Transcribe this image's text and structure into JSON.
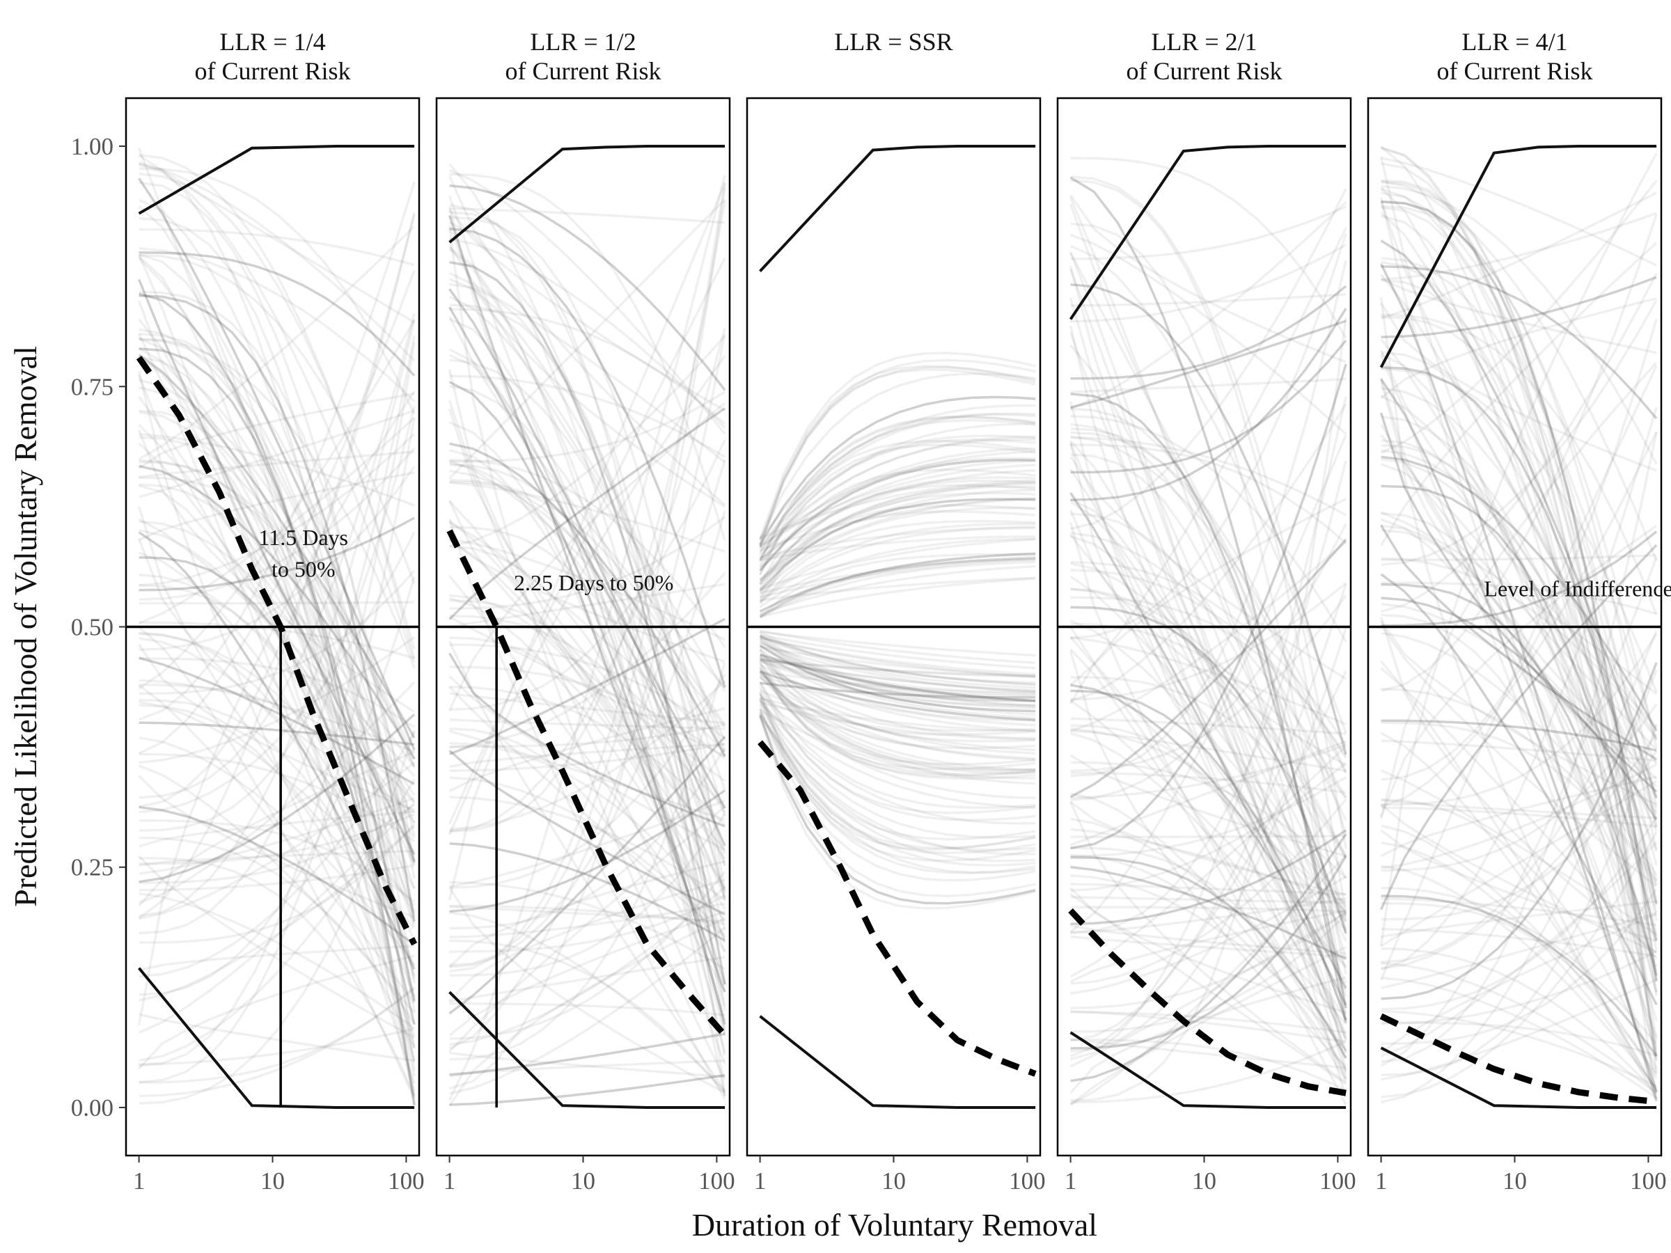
{
  "chart_data": {
    "type": "line",
    "xlabel": "Duration of Voluntary Removal",
    "ylabel": "Predicted Likelihood of Voluntary Removal",
    "xscale": "log",
    "x_ticks": [
      "1",
      "10",
      "100"
    ],
    "x_tick_values": [
      1,
      10,
      100
    ],
    "y_ticks": [
      "0.00",
      "0.25",
      "0.50",
      "0.75",
      "1.00"
    ],
    "y_tick_values": [
      0,
      0.25,
      0.5,
      0.75,
      1.0
    ],
    "xlim": [
      0.8,
      125
    ],
    "ylim": [
      -0.05,
      1.05
    ],
    "indifference_level": 0.5,
    "panels": [
      {
        "title_line1": "LLR = 1/4",
        "title_line2": "of Current Risk",
        "annotation_line1": "11.5 Days",
        "annotation_line2": "to 50%",
        "annotation_x": 17,
        "annotation_y1": 0.585,
        "annotation_y2": 0.552,
        "crossing_x": 11.5,
        "series": [
          {
            "role": "mean",
            "x": [
              1,
              2,
              4,
              7,
              11.5,
              20,
              40,
              70,
              115
            ],
            "y": [
              0.78,
              0.72,
              0.64,
              0.56,
              0.5,
              0.41,
              0.31,
              0.23,
              0.17
            ]
          },
          {
            "role": "upper",
            "x": [
              1,
              7,
              15,
              30,
              60,
              115
            ],
            "y": [
              0.93,
              0.998,
              0.999,
              1.0,
              1.0,
              1.0
            ]
          },
          {
            "role": "lower",
            "x": [
              1,
              7,
              15,
              30,
              60,
              115
            ],
            "y": [
              0.145,
              0.002,
              0.001,
              0.0,
              0.0,
              0.0
            ]
          }
        ]
      },
      {
        "title_line1": "LLR = 1/2",
        "title_line2": "of Current Risk",
        "annotation_line1": "2.25 Days to 50%",
        "annotation_line2": "",
        "annotation_x": 12,
        "annotation_y1": 0.538,
        "annotation_y2": 0.538,
        "crossing_x": 2.25,
        "series": [
          {
            "role": "mean",
            "x": [
              1,
              1.5,
              2.25,
              4,
              7,
              15,
              30,
              60,
              115
            ],
            "y": [
              0.6,
              0.55,
              0.5,
              0.42,
              0.35,
              0.25,
              0.17,
              0.12,
              0.075
            ]
          },
          {
            "role": "upper",
            "x": [
              1,
              7,
              15,
              30,
              60,
              115
            ],
            "y": [
              0.9,
              0.997,
              0.999,
              1.0,
              1.0,
              1.0
            ]
          },
          {
            "role": "lower",
            "x": [
              1,
              7,
              15,
              30,
              60,
              115
            ],
            "y": [
              0.12,
              0.002,
              0.001,
              0.0,
              0.0,
              0.0
            ]
          }
        ]
      },
      {
        "title_line1": "LLR = SSR",
        "title_line2": "",
        "annotation_line1": "",
        "annotation_line2": "",
        "crossing_x": null,
        "series": [
          {
            "role": "mean",
            "x": [
              1,
              2,
              4,
              7,
              15,
              30,
              60,
              115
            ],
            "y": [
              0.38,
              0.33,
              0.25,
              0.18,
              0.11,
              0.07,
              0.05,
              0.035
            ]
          },
          {
            "role": "upper",
            "x": [
              1,
              7,
              15,
              30,
              60,
              115
            ],
            "y": [
              0.87,
              0.996,
              0.999,
              1.0,
              1.0,
              1.0
            ]
          },
          {
            "role": "lower",
            "x": [
              1,
              7,
              15,
              30,
              60,
              115
            ],
            "y": [
              0.095,
              0.002,
              0.001,
              0.0,
              0.0,
              0.0
            ]
          }
        ]
      },
      {
        "title_line1": "LLR = 2/1",
        "title_line2": "of Current Risk",
        "annotation_line1": "",
        "annotation_line2": "",
        "crossing_x": null,
        "series": [
          {
            "role": "mean",
            "x": [
              1,
              2,
              4,
              7,
              15,
              30,
              60,
              115
            ],
            "y": [
              0.205,
              0.16,
              0.12,
              0.09,
              0.055,
              0.035,
              0.022,
              0.015
            ]
          },
          {
            "role": "upper",
            "x": [
              1,
              7,
              15,
              30,
              60,
              115
            ],
            "y": [
              0.82,
              0.995,
              0.999,
              1.0,
              1.0,
              1.0
            ]
          },
          {
            "role": "lower",
            "x": [
              1,
              7,
              15,
              30,
              60,
              115
            ],
            "y": [
              0.078,
              0.002,
              0.001,
              0.0,
              0.0,
              0.0
            ]
          }
        ]
      },
      {
        "title_line1": "LLR = 4/1",
        "title_line2": "of Current Risk",
        "annotation_line1": "Level of Indifference",
        "annotation_line2": "",
        "annotation_x": 30,
        "annotation_y1": 0.532,
        "annotation_y2": 0.532,
        "crossing_x": null,
        "series": [
          {
            "role": "mean",
            "x": [
              1,
              2,
              4,
              7,
              15,
              30,
              60,
              115
            ],
            "y": [
              0.095,
              0.075,
              0.055,
              0.04,
              0.025,
              0.016,
              0.01,
              0.006
            ]
          },
          {
            "role": "upper",
            "x": [
              1,
              7,
              15,
              30,
              60,
              115
            ],
            "y": [
              0.77,
              0.993,
              0.999,
              1.0,
              1.0,
              1.0
            ]
          },
          {
            "role": "lower",
            "x": [
              1,
              7,
              15,
              30,
              60,
              115
            ],
            "y": [
              0.062,
              0.002,
              0.001,
              0.0,
              0.0,
              0.0
            ]
          }
        ]
      }
    ]
  }
}
